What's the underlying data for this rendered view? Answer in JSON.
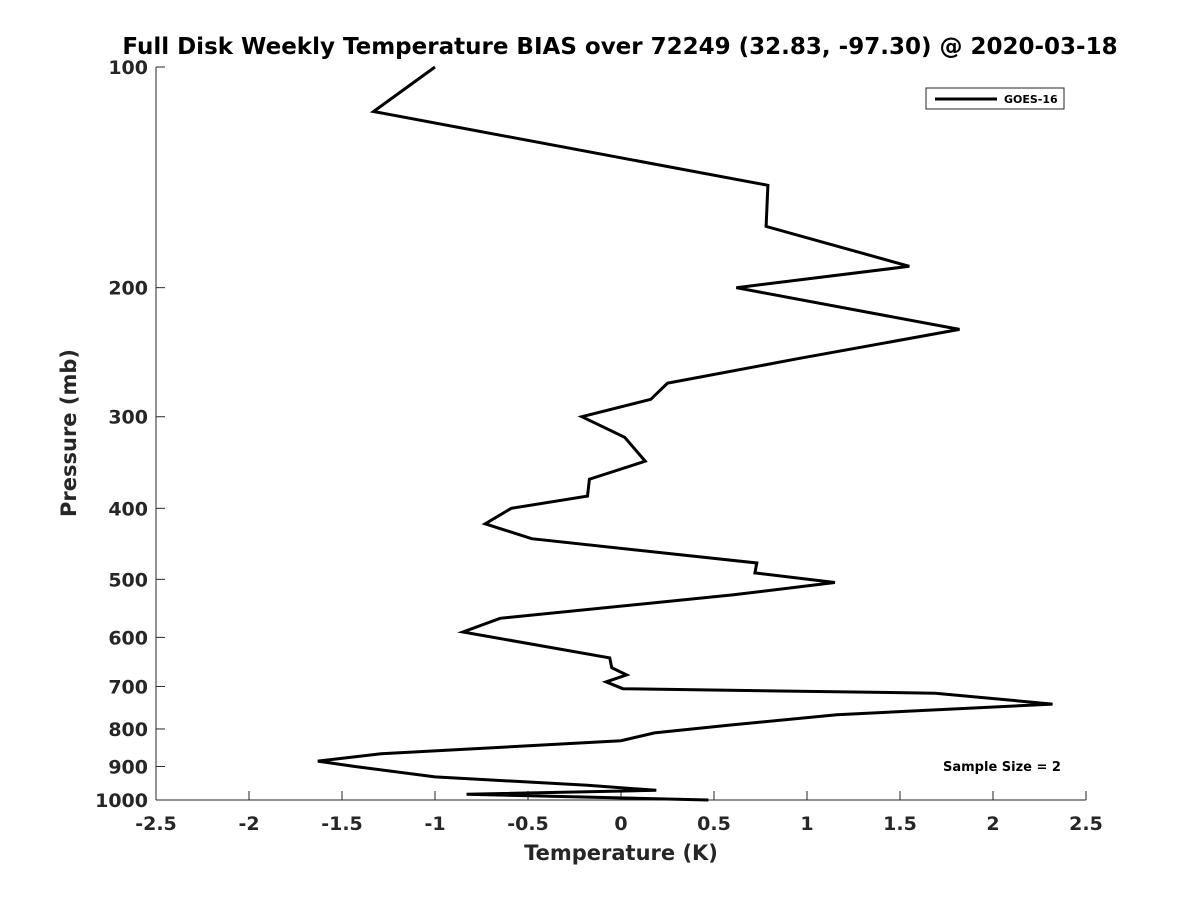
{
  "chart_data": {
    "type": "line",
    "title": "Full Disk Weekly Temperature BIAS over 72249 (32.83, -97.30) @ 2020-03-18",
    "xlabel": "Temperature (K)",
    "ylabel": "Pressure (mb)",
    "xlim": [
      -2.5,
      2.5
    ],
    "ylim": [
      1000,
      100
    ],
    "y_scale": "log",
    "x_ticks": [
      -2.5,
      -2,
      -1.5,
      -1,
      -0.5,
      0,
      0.5,
      1,
      1.5,
      2,
      2.5
    ],
    "x_tick_labels": [
      "-2.5",
      "-2",
      "-1.5",
      "-1",
      "-0.5",
      "0",
      "0.5",
      "1",
      "1.5",
      "2",
      "2.5"
    ],
    "y_ticks": [
      100,
      200,
      300,
      400,
      500,
      600,
      700,
      800,
      900,
      1000
    ],
    "y_tick_labels": [
      "100",
      "200",
      "300",
      "400",
      "500",
      "600",
      "700",
      "800",
      "900",
      "1000"
    ],
    "grid": false,
    "legend_position": "top-right",
    "series": [
      {
        "name": "GOES-16",
        "color": "#000000",
        "x": [
          -1.0,
          -1.33,
          0.79,
          0.78,
          1.55,
          0.62,
          1.82,
          0.95,
          0.25,
          0.16,
          -0.21,
          0.02,
          0.13,
          -0.17,
          -0.18,
          -0.59,
          -0.73,
          -0.48,
          0.73,
          0.72,
          1.15,
          0.6,
          -0.65,
          -0.85,
          -0.06,
          -0.05,
          0.03,
          -0.08,
          0.01,
          1.69,
          2.32,
          1.16,
          0.59,
          0.18,
          0.0,
          -1.29,
          -1.63,
          -1.43,
          -1.0,
          -0.18,
          0.19,
          -0.83,
          0.47
        ],
        "y": [
          100,
          115,
          145,
          165,
          187,
          200,
          228,
          250,
          270,
          284,
          300,
          320,
          345,
          365,
          385,
          400,
          420,
          440,
          475,
          490,
          505,
          525,
          565,
          590,
          640,
          660,
          675,
          690,
          705,
          715,
          740,
          765,
          790,
          810,
          830,
          865,
          885,
          900,
          930,
          955,
          970,
          982,
          1000
        ]
      }
    ],
    "legend": [
      "GOES-16"
    ],
    "annotation": "Sample Size = 2"
  }
}
